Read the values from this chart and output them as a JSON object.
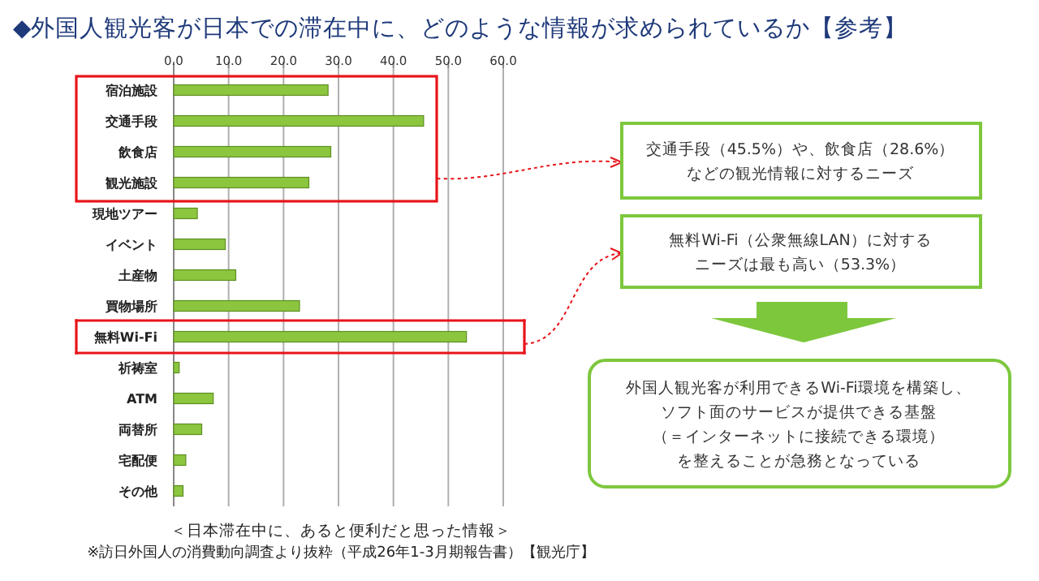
{
  "chart_data": {
    "type": "bar",
    "orientation": "horizontal",
    "title": "◆外国人観光客が日本での滞在中に、どのような情報が求められているか【参考】",
    "xlabel": "＜日本滞在中に、あると便利だと思った情報＞",
    "categories": [
      "宿泊施設",
      "交通手段",
      "飲食店",
      "観光施設",
      "現地ツアー",
      "イベント",
      "土産物",
      "買物場所",
      "無料Wi-Fi",
      "祈祷室",
      "ATM",
      "両替所",
      "宅配便",
      "その他"
    ],
    "values": [
      28.1,
      45.5,
      28.6,
      24.6,
      4.3,
      9.4,
      11.3,
      22.9,
      53.3,
      1.0,
      7.2,
      5.1,
      2.2,
      1.7
    ],
    "color": "#8cc63f",
    "xlim": [
      0,
      60
    ],
    "xticks": [
      {
        "value": 0,
        "label": "0.0"
      },
      {
        "value": 10,
        "label": "10.0"
      },
      {
        "value": 20,
        "label": "20.0"
      },
      {
        "value": 30,
        "label": "30.0"
      },
      {
        "value": 40,
        "label": "40.0"
      },
      {
        "value": 50,
        "label": "50.0"
      },
      {
        "value": 60,
        "label": "60.0"
      }
    ],
    "grid": "x",
    "annotations": [
      "交通手段（45.5%）や、飲食店（28.6%）",
      "などの観光情報に対するニーズ",
      "無料Wi-Fi（公衆無線LAN）に対する",
      "ニーズは最も高い（53.3%）",
      "外国人観光客が利用できるWi-Fi環境を構築し、",
      "ソフト面のサービスが提供できる基盤",
      "（＝インターネットに接続できる環境）",
      "を整えることが急務となっている",
      "※訪日外国人の消費動向調査より抜粋（平成26年1-3月期報告書）【観光庁】"
    ]
  }
}
